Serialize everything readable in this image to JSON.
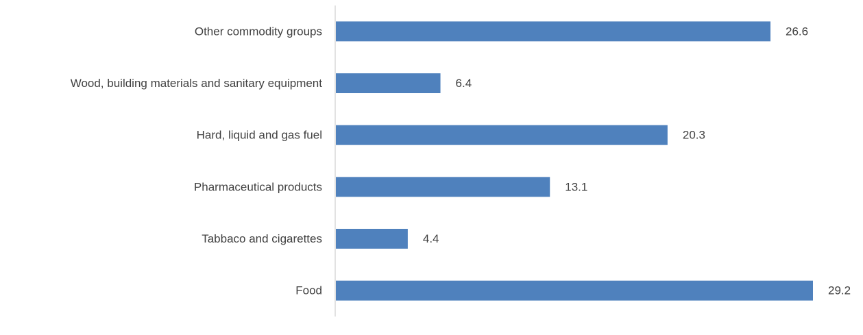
{
  "chart_data": {
    "type": "bar",
    "orientation": "horizontal",
    "categories": [
      "Food",
      "Tabbaco and cigarettes",
      "Pharmaceutical products",
      "Hard, liquid and gas fuel",
      "Wood, building materials and sanitary equipment",
      "Other commodity groups"
    ],
    "values": [
      29.2,
      4.4,
      13.1,
      20.3,
      6.4,
      26.6
    ],
    "value_labels": [
      "29.2",
      "4.4",
      "13.1",
      "20.3",
      "6.4",
      "26.6"
    ],
    "title": "",
    "xlabel": "",
    "ylabel": "",
    "xlim": [
      0,
      29.2
    ],
    "grid": false,
    "legend": "none",
    "colors": {
      "bar": "#4f81bd",
      "axis": "#d9d9d9",
      "text": "#404040"
    }
  }
}
